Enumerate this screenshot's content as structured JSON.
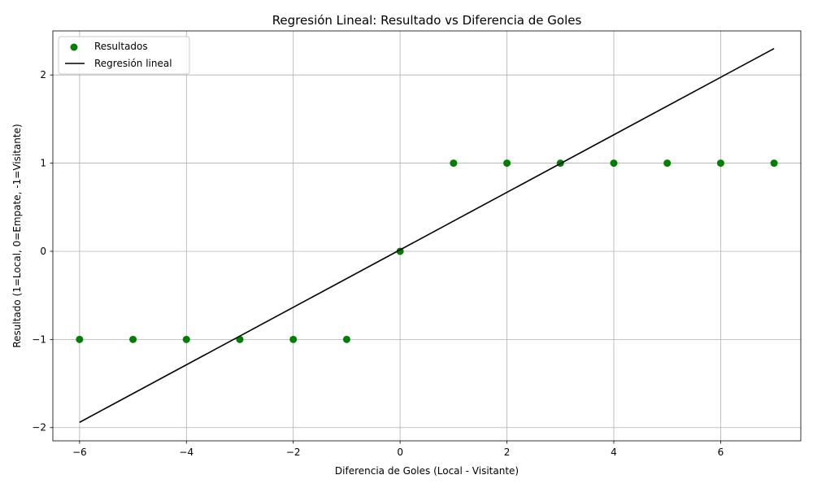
{
  "chart_data": {
    "type": "scatter",
    "title": "Regresión Lineal: Resultado vs Diferencia de Goles",
    "xlabel": "Diferencia de Goles (Local - Visitante)",
    "ylabel": "Resultado (1=Local, 0=Empate, -1=Visitante)",
    "xlim": [
      -6.5,
      7.5
    ],
    "ylim": [
      -2.15,
      2.5
    ],
    "xticks": [
      -6,
      -4,
      -2,
      0,
      2,
      4,
      6
    ],
    "yticks": [
      -2,
      -1,
      0,
      1,
      2
    ],
    "xtick_labels": [
      "−6",
      "−4",
      "−2",
      "0",
      "2",
      "4",
      "6"
    ],
    "ytick_labels": [
      "−2",
      "−1",
      "0",
      "1",
      "2"
    ],
    "grid": true,
    "legend_position": "top-left",
    "series": [
      {
        "name": "Resultados",
        "kind": "scatter",
        "color": "#008000",
        "points": [
          {
            "x": -6,
            "y": -1
          },
          {
            "x": -5,
            "y": -1
          },
          {
            "x": -4,
            "y": -1
          },
          {
            "x": -3,
            "y": -1
          },
          {
            "x": -2,
            "y": -1
          },
          {
            "x": -1,
            "y": -1
          },
          {
            "x": 0,
            "y": 0
          },
          {
            "x": 1,
            "y": 1
          },
          {
            "x": 2,
            "y": 1
          },
          {
            "x": 3,
            "y": 1
          },
          {
            "x": 4,
            "y": 1
          },
          {
            "x": 5,
            "y": 1
          },
          {
            "x": 6,
            "y": 1
          },
          {
            "x": 7,
            "y": 1
          }
        ]
      },
      {
        "name": "Regresión lineal",
        "kind": "line",
        "color": "#000000",
        "points": [
          {
            "x": -6,
            "y": -1.94
          },
          {
            "x": 7,
            "y": 2.3
          }
        ]
      }
    ]
  }
}
